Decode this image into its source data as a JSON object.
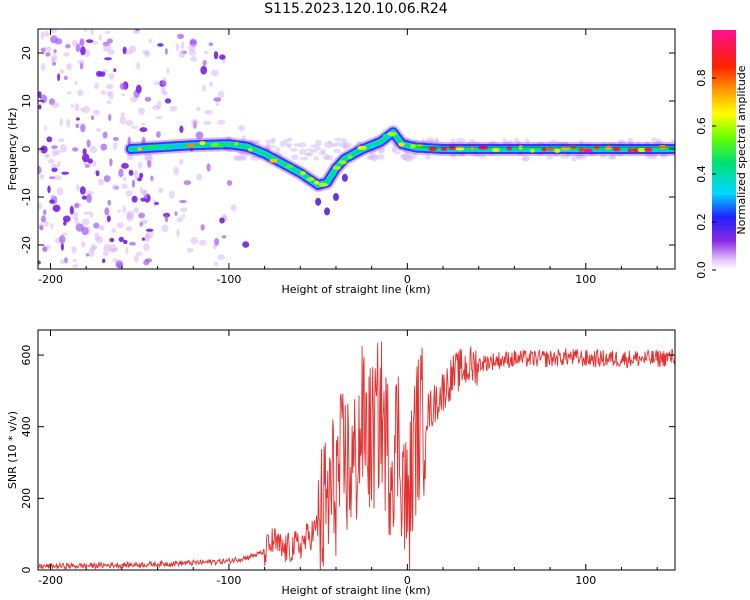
{
  "title": "S115.2023.120.10.06.R24",
  "chart_data": [
    {
      "type": "heatmap",
      "xlabel": "Height of straight line (km)",
      "ylabel": "Frequency (Hz)",
      "xlim": [
        -207,
        150
      ],
      "ylim": [
        -25,
        25
      ],
      "xticks": [
        -200,
        -100,
        0,
        100
      ],
      "yticks": [
        -20,
        -10,
        0,
        10,
        20
      ],
      "colorbar": {
        "label": "Normalized spectral amplitude",
        "range": [
          0,
          1
        ],
        "ticks": [
          0.0,
          0.2,
          0.4,
          0.6,
          0.8
        ],
        "tick_labels": [
          "0.0",
          "0.2",
          "0.4",
          "0.6",
          "0.8"
        ],
        "colormap": "rainbow (white, violet, blue, cyan, green, yellow, orange, red, magenta)"
      },
      "main_ridge": [
        {
          "x": -155,
          "y": 0.0
        },
        {
          "x": -120,
          "y": 0.8
        },
        {
          "x": -100,
          "y": 1.0
        },
        {
          "x": -90,
          "y": 0.5
        },
        {
          "x": -80,
          "y": -1.0
        },
        {
          "x": -70,
          "y": -3.0
        },
        {
          "x": -60,
          "y": -5.0
        },
        {
          "x": -50,
          "y": -7.5
        },
        {
          "x": -45,
          "y": -7.0
        },
        {
          "x": -40,
          "y": -4.0
        },
        {
          "x": -35,
          "y": -2.0
        },
        {
          "x": -25,
          "y": 0.0
        },
        {
          "x": -15,
          "y": 1.5
        },
        {
          "x": -8,
          "y": 3.5
        },
        {
          "x": -3,
          "y": 1.0
        },
        {
          "x": 5,
          "y": 0.3
        },
        {
          "x": 20,
          "y": 0.0
        },
        {
          "x": 150,
          "y": 0.0
        }
      ]
    },
    {
      "type": "line",
      "xlabel": "Height of straight line (km)",
      "ylabel": "SNR (10 * v/v)",
      "xlim": [
        -207,
        150
      ],
      "ylim": [
        0,
        670
      ],
      "xticks": [
        -200,
        -100,
        0,
        100
      ],
      "yticks": [
        0,
        200,
        400,
        600
      ],
      "line_color": "#e53030",
      "series": [
        {
          "x": [
            -207,
            -180,
            -150,
            -120,
            -100,
            -90,
            -80,
            -75,
            -70,
            -60,
            -50,
            -45,
            -40,
            -35,
            -30,
            -25,
            -20,
            -15,
            -10,
            -5,
            0,
            5,
            10,
            15,
            20,
            25,
            30,
            40,
            50,
            60,
            70,
            80,
            90,
            100,
            120,
            140,
            150
          ],
          "values": [
            10,
            12,
            15,
            20,
            25,
            35,
            50,
            80,
            55,
            70,
            120,
            180,
            250,
            300,
            280,
            420,
            350,
            450,
            300,
            380,
            150,
            380,
            430,
            460,
            500,
            540,
            560,
            575,
            585,
            590,
            590,
            590,
            595,
            590,
            590,
            590,
            595
          ]
        }
      ]
    }
  ]
}
